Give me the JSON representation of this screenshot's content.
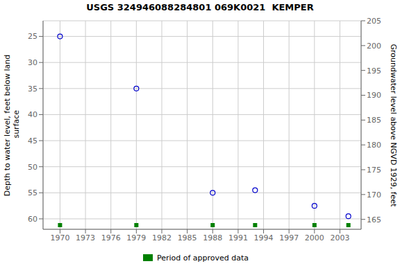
{
  "chart_data": {
    "type": "scatter",
    "title": "USGS 324946088284801 069K0021  KEMPER",
    "x": [
      1970,
      1979,
      1988,
      1993,
      2000,
      2004
    ],
    "series": [
      {
        "color": "#0000CC",
        "marker": "circle",
        "values": [
          25,
          35,
          55,
          54.5,
          57.5,
          59.5
        ]
      },
      {
        "name": "Period of approved data",
        "color": "#008000",
        "marker": "square",
        "x": [
          1970,
          1979,
          1988,
          1993,
          2000,
          2004
        ]
      }
    ],
    "ylabel": "Depth to water level, feet below land\n surface",
    "y2label": "Groundwater level above NGVD 1929, feet",
    "xlim": [
      1968.0,
      2005.5
    ],
    "xticks": [
      1970,
      1973,
      1976,
      1979,
      1982,
      1985,
      1988,
      1991,
      1994,
      1997,
      2000,
      2003
    ],
    "ylim": [
      62,
      22
    ],
    "yticks": [
      25,
      30,
      35,
      40,
      45,
      50,
      55,
      60
    ],
    "y2lim": [
      163,
      205
    ],
    "y2ticks": [
      165,
      170,
      175,
      180,
      185,
      190,
      195,
      200,
      205
    ],
    "grid": true,
    "legend": "bottom"
  }
}
